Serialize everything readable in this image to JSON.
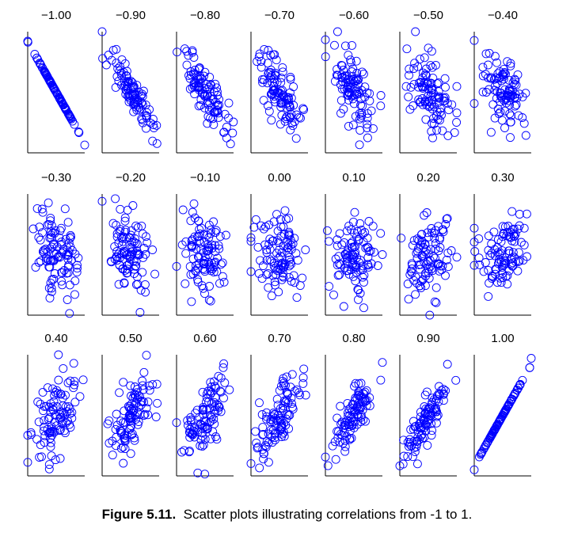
{
  "caption": {
    "label": "Figure 5.11.",
    "text": "Scatter plots illustrating correlations from -1 to 1."
  },
  "colors": {
    "marker": "#0000ff",
    "axis": "#000000",
    "text": "#000000"
  },
  "chart_data": {
    "type": "scatter",
    "layout": "small-multiples",
    "rows": 3,
    "cols": 7,
    "n_points_per_panel": 100,
    "marker": "open-circle",
    "axes": "left-and-bottom-lines-only",
    "tick_labels": false,
    "grid": false,
    "x_range": [
      -2.5,
      2.5
    ],
    "y_range": [
      -3.0,
      3.0
    ],
    "panels": [
      {
        "title": "−1.00",
        "r": -1.0
      },
      {
        "title": "−0.90",
        "r": -0.9
      },
      {
        "title": "−0.80",
        "r": -0.8
      },
      {
        "title": "−0.70",
        "r": -0.7
      },
      {
        "title": "−0.60",
        "r": -0.6
      },
      {
        "title": "−0.50",
        "r": -0.5
      },
      {
        "title": "−0.40",
        "r": -0.4
      },
      {
        "title": "−0.30",
        "r": -0.3
      },
      {
        "title": "−0.20",
        "r": -0.2
      },
      {
        "title": "−0.10",
        "r": -0.1
      },
      {
        "title": "0.00",
        "r": 0.0
      },
      {
        "title": "0.10",
        "r": 0.1
      },
      {
        "title": "0.20",
        "r": 0.2
      },
      {
        "title": "0.30",
        "r": 0.3
      },
      {
        "title": "0.40",
        "r": 0.4
      },
      {
        "title": "0.50",
        "r": 0.5
      },
      {
        "title": "0.60",
        "r": 0.6
      },
      {
        "title": "0.70",
        "r": 0.7
      },
      {
        "title": "0.80",
        "r": 0.8
      },
      {
        "title": "0.90",
        "r": 0.9
      },
      {
        "title": "1.00",
        "r": 1.0
      }
    ]
  }
}
